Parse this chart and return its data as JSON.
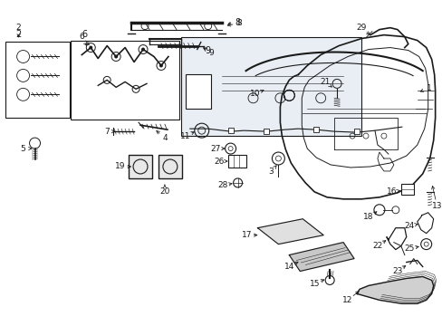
{
  "background_color": "#ffffff",
  "line_color": "#1a1a1a",
  "fig_width": 4.89,
  "fig_height": 3.6,
  "dpi": 100,
  "inset_bg": "#e8eef4"
}
